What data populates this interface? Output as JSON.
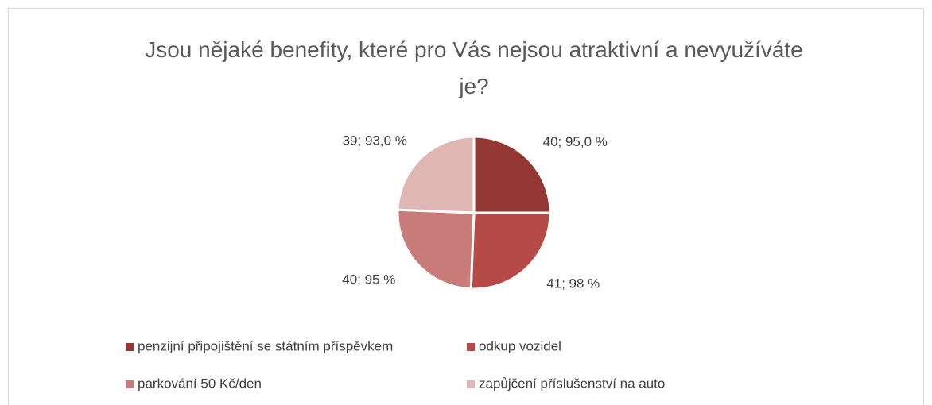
{
  "chart_data": {
    "type": "pie",
    "title": "Jsou nějaké benefity, které pro Vás nejsou atraktivní a nevyužíváte je?",
    "categories": [
      "penzijní připojištění se státním příspěvkem",
      "odkup vozidel",
      "parkování 50 Kč/den",
      "zapůjčení příslušenství na auto"
    ],
    "values": [
      40,
      41,
      40,
      39
    ],
    "value_labels": [
      "40; 95,0 %",
      "41; 98 %",
      "40; 95 %",
      "39; 93,0 %"
    ],
    "colors": [
      "#943634",
      "#b54a47",
      "#c97b79",
      "#e0b6b5"
    ],
    "legend": "bottom"
  }
}
